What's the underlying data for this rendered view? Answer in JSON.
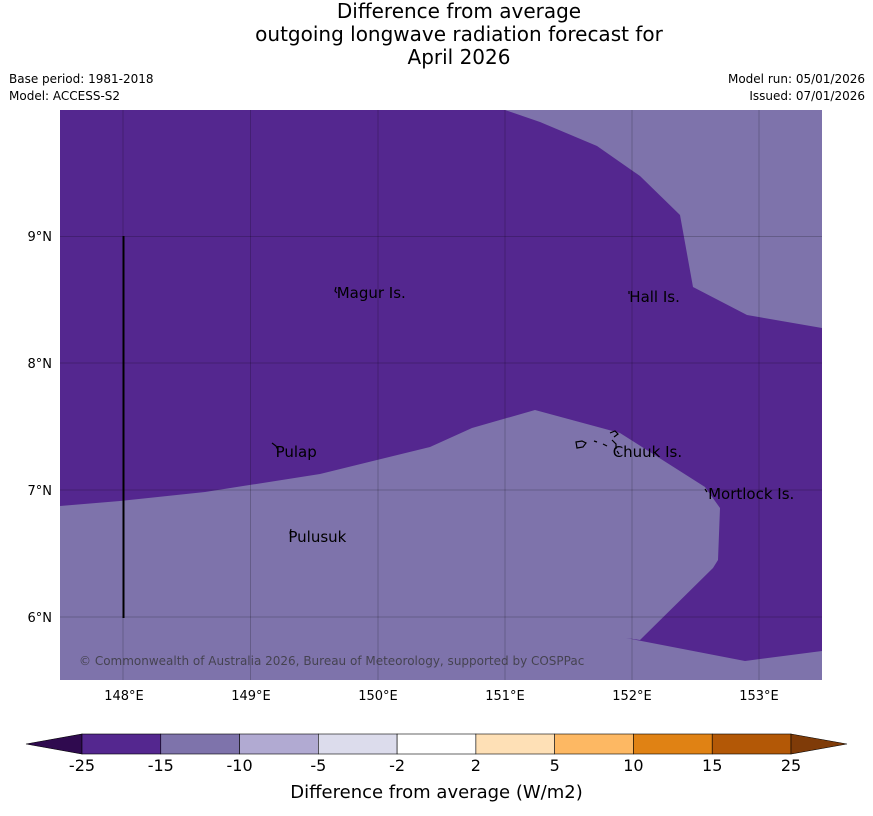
{
  "title": {
    "line1": "Difference from average",
    "line2": "outgoing longwave radiation forecast for",
    "line3": "April 2026"
  },
  "meta": {
    "base_period": "Base period: 1981-2018",
    "model": "Model: ACCESS-S2",
    "model_run": "Model run: 05/01/2026",
    "issued": "Issued: 07/01/2026"
  },
  "map": {
    "lon_ticks": [
      "148°E",
      "149°E",
      "150°E",
      "151°E",
      "152°E",
      "153°E"
    ],
    "lat_ticks": [
      "9°N",
      "8°N",
      "7°N",
      "6°N"
    ],
    "copyright": "© Commonwealth of Australia 2026, Bureau of Meteorology, supported by COSPPac",
    "places": [
      {
        "name": "Magur Is.",
        "lon": 149.68,
        "lat": 8.55
      },
      {
        "name": "Hall Is.",
        "lon": 151.98,
        "lat": 8.52
      },
      {
        "name": "Pulap",
        "lon": 149.2,
        "lat": 7.3
      },
      {
        "name": "Chuuk Is.",
        "lon": 151.85,
        "lat": 7.3
      },
      {
        "name": "Mortlock Is.",
        "lon": 152.6,
        "lat": 6.97
      },
      {
        "name": "Pulusuk",
        "lon": 149.3,
        "lat": 6.63
      }
    ]
  },
  "colorbar": {
    "title": "Difference from average (W/m2)",
    "ticks": [
      "-25",
      "-15",
      "-10",
      "-5",
      "-2",
      "2",
      "5",
      "10",
      "15",
      "25"
    ],
    "colors": [
      "#2f0a4f",
      "#54278f",
      "#7e73ab",
      "#b1aad2",
      "#dcdcec",
      "#ffffff",
      "#fee0b6",
      "#fdb863",
      "#e08214",
      "#b35806",
      "#7f3b08"
    ]
  }
}
